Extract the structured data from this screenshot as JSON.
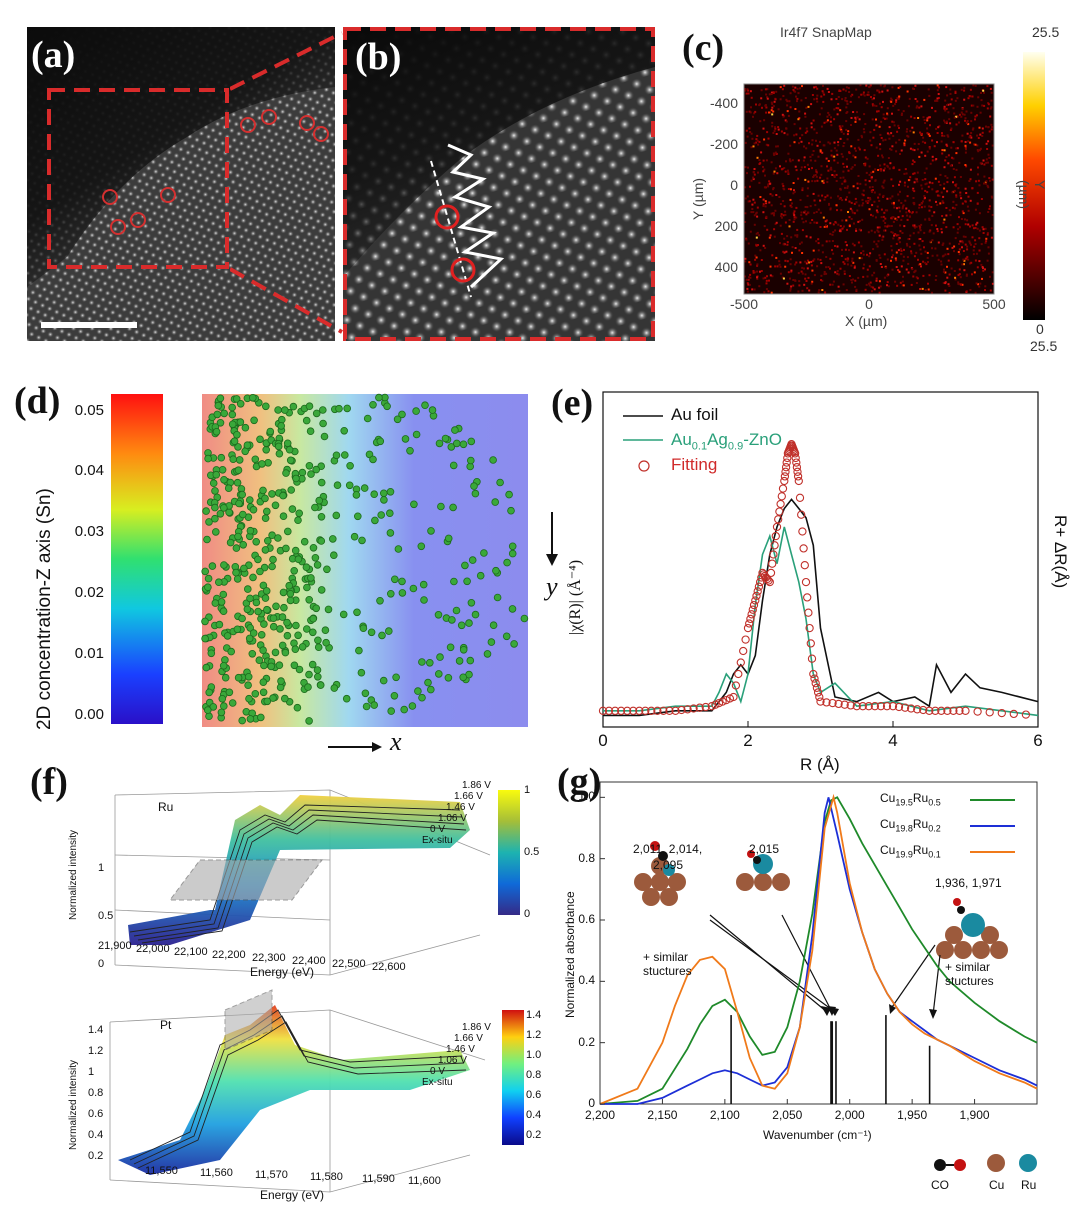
{
  "panels": {
    "a": {
      "label": "(a)"
    },
    "b": {
      "label": "(b)"
    },
    "c": {
      "label": "(c)",
      "title": "Ir4f7 SnapMap",
      "xlabel": "X (µm)",
      "ylabel": "Y (µm)",
      "xticks": [
        "-500",
        "0",
        "500"
      ],
      "yticks": [
        "-400",
        "-200",
        "0",
        "200",
        "400"
      ],
      "colorbar_top": "25.5",
      "colorbar_bottom_a": "0",
      "colorbar_bottom_b": "25.5",
      "colorbar_label": "Y (µm)"
    },
    "d": {
      "label": "(d)",
      "colorbar_label": "2D concentration-Z axis (Sn)",
      "ticks": [
        "0.05",
        "0.04",
        "0.03",
        "0.02",
        "0.01",
        "0.00"
      ],
      "arrow_x": "x",
      "arrow_y": "y"
    },
    "e": {
      "label": "(e)",
      "xlabel": "R (Å)",
      "ylabel_left": "|χ(R)| (Å⁻⁴)",
      "ylabel_right": "R+ ΔR(Å)",
      "xticks": [
        "0",
        "2",
        "4",
        "6"
      ],
      "legend": {
        "au_foil": "Au foil",
        "auag_main": "Au",
        "auag_sub1": "0.1",
        "auag_mid": "Ag",
        "auag_sub2": "0.9",
        "auag_end": "-ZnO",
        "fitting": "Fitting"
      }
    },
    "f": {
      "label": "(f)",
      "top": {
        "element": "Ru",
        "xlabel": "Energy (eV)",
        "ylabel": "Normalized intensity",
        "xticks": [
          "21,900",
          "22,000",
          "22,100",
          "22,200",
          "22,300",
          "22,400",
          "22,500",
          "22,600"
        ],
        "zticks": [
          "0",
          "0.5",
          "1"
        ],
        "cbar_ticks": [
          "1",
          "0.5",
          "0"
        ],
        "traces": [
          "1.86 V",
          "1.66 V",
          "1.46 V",
          "1.06 V",
          "0 V",
          "Ex-situ"
        ]
      },
      "bottom": {
        "element": "Pt",
        "xlabel": "Energy (eV)",
        "ylabel": "Normalized intensity",
        "xticks": [
          "11,550",
          "11,560",
          "11,570",
          "11,580",
          "11,590",
          "11,600"
        ],
        "zticks": [
          "1.4",
          "1.2",
          "1",
          "0.8",
          "0.6",
          "0.4",
          "0.2"
        ],
        "cbar_ticks": [
          "1.4",
          "1.2",
          "1.0",
          "0.8",
          "0.6",
          "0.4",
          "0.2"
        ],
        "traces": [
          "1.86 V",
          "1.66 V",
          "1.46 V",
          "1.06 V",
          "0 V",
          "Ex-situ"
        ]
      }
    },
    "g": {
      "label": "(g)",
      "xlabel": "Wavenumber (cm⁻¹)",
      "ylabel": "Normalized absorbance",
      "xticks": [
        "2,200",
        "2,150",
        "2,100",
        "2,050",
        "2,000",
        "1,950",
        "1,900"
      ],
      "yticks": [
        "0",
        "0.2",
        "0.4",
        "0.6",
        "0.8",
        "1.0"
      ],
      "legend": [
        {
          "main": "Cu",
          "sub1": "19.5",
          "mid": "Ru",
          "sub2": "0.5",
          "color": "#1f8a2a"
        },
        {
          "main": "Cu",
          "sub1": "19.8",
          "mid": "Ru",
          "sub2": "0.2",
          "color": "#1d2fd6"
        },
        {
          "main": "Cu",
          "sub1": "19.9",
          "mid": "Ru",
          "sub2": "0.1",
          "color": "#f07a1a"
        }
      ],
      "annotations": {
        "a1": "2,011, 2,014,",
        "a2": "2,095",
        "b1": "2,015",
        "c1": "1,936, 1,971",
        "sim1a": "+ similar",
        "sim1b": "stuctures",
        "sim2a": "+ similar",
        "sim2b": "stuctures"
      },
      "species": {
        "co": "CO",
        "cu": "Cu",
        "ru": "Ru"
      }
    }
  },
  "chart_data": [
    {
      "type": "image",
      "panel": "(c)",
      "title": "Ir4f7 SnapMap",
      "xlabel": "X (µm)",
      "ylabel": "Y (µm)",
      "xlim": [
        -500,
        500
      ],
      "ylim": [
        -500,
        500
      ],
      "colorbar": [
        0,
        25.5
      ]
    },
    {
      "type": "scatter",
      "panel": "(d)",
      "xlabel": "x",
      "ylabel": "y",
      "colorbar_label": "2D concentration-Z axis (Sn)",
      "colorbar_range": [
        0.0,
        0.055
      ]
    },
    {
      "type": "line",
      "panel": "(e)",
      "xlabel": "R (Å)",
      "xlim": [
        0,
        6
      ],
      "series": [
        {
          "name": "Au foil",
          "x": [
            0,
            0.5,
            1,
            1.5,
            1.7,
            1.8,
            1.9,
            2.0,
            2.1,
            2.2,
            2.3,
            2.4,
            2.5,
            2.6,
            2.7,
            2.8,
            2.9,
            3.0,
            3.2,
            3.5,
            3.8,
            4.0,
            4.3,
            4.5,
            4.6,
            4.8,
            5.0,
            5.2,
            5.5,
            6.0
          ],
          "y": [
            0.01,
            0.01,
            0.02,
            0.02,
            0.06,
            0.1,
            0.12,
            0.1,
            0.14,
            0.26,
            0.36,
            0.42,
            0.46,
            0.48,
            0.46,
            0.44,
            0.38,
            0.2,
            0.05,
            0.04,
            0.06,
            0.04,
            0.05,
            0.03,
            0.12,
            0.06,
            0.1,
            0.07,
            0.06,
            0.04
          ]
        },
        {
          "name": "Au0.1Ag0.9-ZnO",
          "x": [
            0,
            0.5,
            1,
            1.5,
            1.6,
            1.7,
            1.8,
            1.9,
            2.0,
            2.1,
            2.2,
            2.3,
            2.4,
            2.5,
            2.6,
            2.7,
            2.8,
            2.9,
            3.0,
            3.2,
            3.5,
            4.0,
            4.5,
            5.0,
            5.5,
            6.0
          ],
          "y": [
            0.02,
            0.02,
            0.03,
            0.03,
            0.06,
            0.1,
            0.08,
            0.04,
            0.1,
            0.25,
            0.36,
            0.4,
            0.34,
            0.42,
            0.36,
            0.3,
            0.22,
            0.1,
            0.06,
            0.08,
            0.03,
            0.04,
            0.02,
            0.03,
            0.02,
            0.01
          ]
        },
        {
          "name": "Fitting",
          "x": [
            0,
            0.5,
            1,
            1.5,
            1.8,
            2.0,
            2.1,
            2.2,
            2.3,
            2.4,
            2.5,
            2.55,
            2.6,
            2.65,
            2.7,
            2.8,
            2.9,
            3.0,
            3.5,
            4.0,
            4.5,
            5.0,
            6.0
          ],
          "y": [
            0.02,
            0.02,
            0.02,
            0.03,
            0.05,
            0.2,
            0.26,
            0.32,
            0.3,
            0.42,
            0.52,
            0.58,
            0.6,
            0.58,
            0.52,
            0.3,
            0.1,
            0.04,
            0.03,
            0.03,
            0.02,
            0.02,
            0.01
          ]
        }
      ]
    },
    {
      "type": "line",
      "panel": "(f) top",
      "title": "Ru",
      "xlabel": "Energy (eV)",
      "ylabel": "Normalized intensity",
      "xlim": [
        21900,
        22600
      ],
      "zlim": [
        0,
        1.1
      ],
      "series": [
        {
          "name": "1.86 V"
        },
        {
          "name": "1.66 V"
        },
        {
          "name": "1.46 V"
        },
        {
          "name": "1.06 V"
        },
        {
          "name": "0 V"
        },
        {
          "name": "Ex-situ"
        }
      ]
    },
    {
      "type": "line",
      "panel": "(f) bottom",
      "title": "Pt",
      "xlabel": "Energy (eV)",
      "ylabel": "Normalized intensity",
      "xlim": [
        11550,
        11600
      ],
      "zlim": [
        0.2,
        1.4
      ],
      "series": [
        {
          "name": "1.86 V"
        },
        {
          "name": "1.66 V"
        },
        {
          "name": "1.46 V"
        },
        {
          "name": "1.06 V"
        },
        {
          "name": "0 V"
        },
        {
          "name": "Ex-situ"
        }
      ]
    },
    {
      "type": "line",
      "panel": "(g)",
      "xlabel": "Wavenumber (cm⁻¹)",
      "ylabel": "Normalized absorbance",
      "xlim": [
        2200,
        1850
      ],
      "ylim": [
        0,
        1.05
      ],
      "series": [
        {
          "name": "Cu19.5Ru0.5",
          "x": [
            2200,
            2170,
            2150,
            2130,
            2120,
            2110,
            2100,
            2090,
            2080,
            2070,
            2060,
            2050,
            2040,
            2030,
            2020,
            2015,
            2010,
            2000,
            1990,
            1980,
            1970,
            1960,
            1950,
            1940,
            1930,
            1920,
            1900,
            1880,
            1860,
            1850
          ],
          "y": [
            0.0,
            0.01,
            0.05,
            0.18,
            0.26,
            0.32,
            0.34,
            0.3,
            0.22,
            0.16,
            0.17,
            0.25,
            0.4,
            0.62,
            0.92,
            0.99,
            1.0,
            0.93,
            0.85,
            0.78,
            0.71,
            0.64,
            0.57,
            0.51,
            0.45,
            0.4,
            0.33,
            0.27,
            0.22,
            0.2
          ]
        },
        {
          "name": "Cu19.8Ru0.2",
          "x": [
            2200,
            2170,
            2150,
            2130,
            2120,
            2110,
            2100,
            2090,
            2080,
            2070,
            2060,
            2050,
            2040,
            2030,
            2020,
            2017,
            2010,
            2000,
            1990,
            1980,
            1970,
            1960,
            1950,
            1940,
            1930,
            1920,
            1900,
            1880,
            1860,
            1850
          ],
          "y": [
            0.0,
            0.0,
            0.02,
            0.06,
            0.08,
            0.1,
            0.11,
            0.1,
            0.08,
            0.06,
            0.07,
            0.12,
            0.25,
            0.55,
            0.95,
            1.0,
            0.88,
            0.7,
            0.56,
            0.44,
            0.36,
            0.3,
            0.27,
            0.24,
            0.21,
            0.19,
            0.15,
            0.11,
            0.08,
            0.06
          ]
        },
        {
          "name": "Cu19.9Ru0.1",
          "x": [
            2200,
            2170,
            2150,
            2140,
            2130,
            2120,
            2110,
            2100,
            2090,
            2080,
            2070,
            2060,
            2050,
            2040,
            2030,
            2020,
            2013,
            2010,
            2000,
            1990,
            1980,
            1970,
            1960,
            1950,
            1940,
            1930,
            1920,
            1900,
            1880,
            1860,
            1850
          ],
          "y": [
            0.0,
            0.05,
            0.2,
            0.32,
            0.42,
            0.47,
            0.48,
            0.44,
            0.3,
            0.15,
            0.06,
            0.05,
            0.1,
            0.25,
            0.5,
            0.9,
            1.0,
            0.95,
            0.72,
            0.56,
            0.44,
            0.36,
            0.3,
            0.26,
            0.23,
            0.21,
            0.19,
            0.14,
            0.1,
            0.07,
            0.05
          ]
        }
      ]
    }
  ]
}
